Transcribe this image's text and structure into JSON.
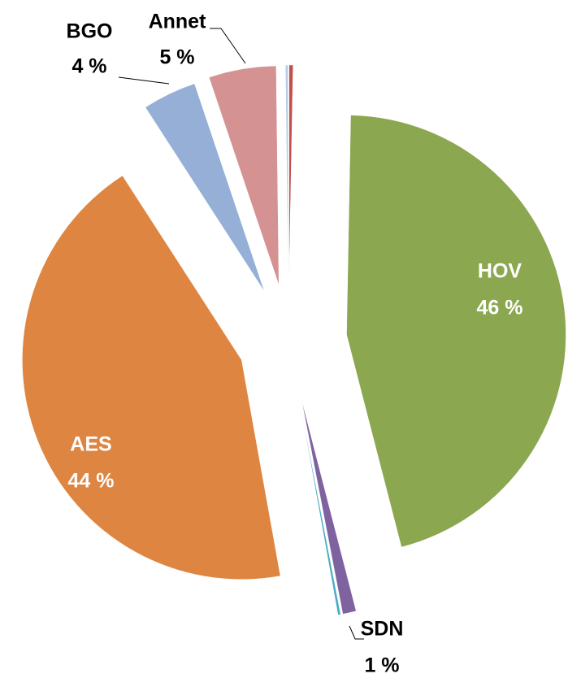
{
  "chart_data": {
    "type": "pie",
    "categories": [
      null,
      "HOV",
      "SDN",
      null,
      "AES",
      "BGO",
      "Annet",
      null
    ],
    "values": [
      0.3,
      46,
      1,
      0.2,
      44,
      4,
      5,
      0.2
    ],
    "value_labels": [
      null,
      "46 %",
      "1 %",
      null,
      "44 %",
      "4 %",
      "5 %",
      null
    ],
    "colors": [
      "#c0504d",
      "#8ba750",
      "#7f63a1",
      "#4bacc6",
      "#de8641",
      "#95afd7",
      "#d49293",
      "#b9cde5"
    ],
    "exploded": true
  }
}
